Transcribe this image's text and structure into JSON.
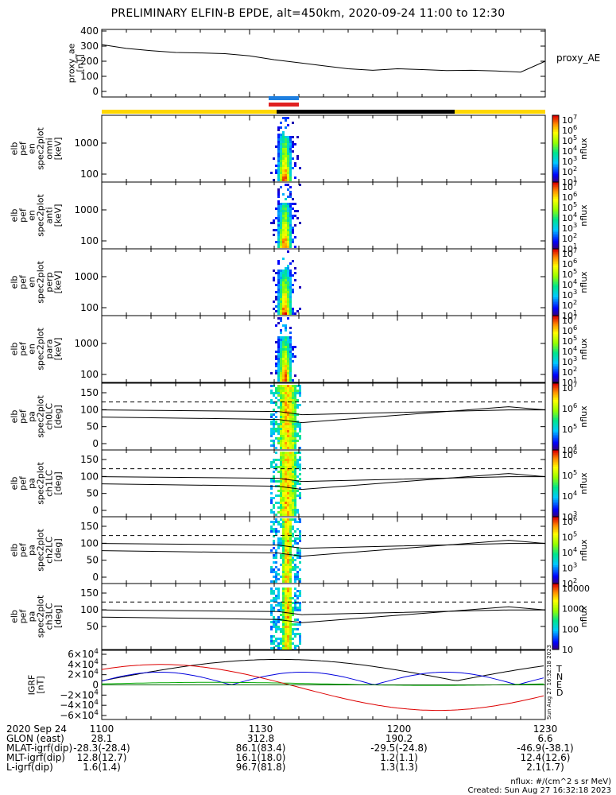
{
  "title": "PRELIMINARY ELFIN-B EPDE, alt=450km, 2020-09-24 11:00 to 12:30",
  "colors": {
    "state_bar_yellow": "#ffd700",
    "state_bar_black": "#000000",
    "science_bar_blue": "#1e7fe0",
    "science_bar_red": "#e02020"
  },
  "chart_data": [
    {
      "type": "line",
      "name": "proxy_ae",
      "ylabel": [
        "proxy_ae",
        "[nT]"
      ],
      "legend": "proxy_AE",
      "yticks": [
        "400",
        "300",
        "200",
        "100",
        "0"
      ],
      "ylim": [
        0,
        400
      ],
      "x": [
        "11:00",
        "11:05",
        "11:10",
        "11:15",
        "11:20",
        "11:25",
        "11:30",
        "11:35",
        "11:40",
        "11:45",
        "11:50",
        "11:55",
        "12:00",
        "12:05",
        "12:10",
        "12:15",
        "12:20",
        "12:25",
        "12:30"
      ],
      "y": [
        310,
        285,
        270,
        258,
        255,
        250,
        235,
        210,
        190,
        170,
        150,
        140,
        150,
        145,
        138,
        140,
        135,
        128,
        200
      ]
    },
    {
      "type": "heatmap",
      "panels": [
        {
          "ylabel": [
            "elb",
            "pef",
            "en",
            "spec2plot",
            "omni",
            "[keV]"
          ],
          "yticks": [
            "1000",
            "100"
          ],
          "scale": "log",
          "cbar_ticks": [
            "10^7",
            "10^6",
            "10^5",
            "10^4",
            "10^3",
            "10^2",
            "10^1"
          ],
          "cbar_label": "nflux"
        },
        {
          "ylabel": [
            "elb",
            "pef",
            "en",
            "spec2plot",
            "anti",
            "[keV]"
          ],
          "yticks": [
            "1000",
            "100"
          ],
          "scale": "log",
          "cbar_ticks": [
            "10^7",
            "10^6",
            "10^5",
            "10^4",
            "10^3",
            "10^2",
            "10^1"
          ],
          "cbar_label": "nflux"
        },
        {
          "ylabel": [
            "elb",
            "pef",
            "en",
            "spec2plot",
            "perp",
            "[keV]"
          ],
          "yticks": [
            "1000",
            "100"
          ],
          "scale": "log",
          "cbar_ticks": [
            "10^7",
            "10^6",
            "10^5",
            "10^4",
            "10^3",
            "10^2",
            "10^1"
          ],
          "cbar_label": "nflux"
        },
        {
          "ylabel": [
            "elb",
            "pef",
            "en",
            "spec2plot",
            "para",
            "[keV]"
          ],
          "yticks": [
            "1000",
            "100"
          ],
          "scale": "log",
          "cbar_ticks": [
            "10^7",
            "10^6",
            "10^5",
            "10^4",
            "10^3",
            "10^2",
            "10^1"
          ],
          "cbar_label": "nflux"
        },
        {
          "ylabel": [
            "elb",
            "pef",
            "pa",
            "spec2plot",
            "ch0LC",
            "[deg]"
          ],
          "yticks": [
            "150",
            "100",
            "50",
            "0"
          ],
          "scale": "linear",
          "cbar_ticks": [
            "10^7",
            "10^6",
            "10^5",
            "10^4"
          ],
          "cbar_label": "nflux"
        },
        {
          "ylabel": [
            "elb",
            "pef",
            "pa",
            "spec2plot",
            "ch1LC",
            "[deg]"
          ],
          "yticks": [
            "150",
            "100",
            "50",
            "0"
          ],
          "scale": "linear",
          "cbar_ticks": [
            "10^6",
            "10^5",
            "10^4",
            "10^3"
          ],
          "cbar_label": "nflux"
        },
        {
          "ylabel": [
            "elb",
            "pef",
            "pa",
            "spec2plot",
            "ch2LC",
            "[deg]"
          ],
          "yticks": [
            "150",
            "100",
            "50",
            "0"
          ],
          "scale": "linear",
          "cbar_ticks": [
            "10^6",
            "10^5",
            "10^4",
            "10^3",
            "10^2"
          ],
          "cbar_label": "nflux"
        },
        {
          "ylabel": [
            "elb",
            "pef",
            "pa",
            "spec2plot",
            "ch3LC",
            "[deg]"
          ],
          "yticks": [
            "150",
            "100",
            "50"
          ],
          "scale": "linear",
          "cbar_ticks": [
            "10000",
            "1000",
            "100",
            "10"
          ],
          "cbar_label": "nflux"
        }
      ]
    },
    {
      "type": "line",
      "name": "IGRF",
      "ylabel": [
        "IGRF",
        "[nT]"
      ],
      "yticks": [
        "6×10^4",
        "4×10^4",
        "2×10^4",
        "0",
        "−2×10^4",
        "−4×10^4",
        "−6×10^4"
      ],
      "ylim": [
        -60000,
        60000
      ],
      "legend": [
        "T",
        "N",
        "E",
        "D"
      ],
      "legend_colors": [
        "#000000",
        "#0000dd",
        "#00aa00",
        "#dd0000"
      ]
    }
  ],
  "footer": {
    "xaxis_rows": [
      {
        "label": "2020 Sep 24",
        "values": [
          "1100",
          "1130",
          "1200",
          "1230"
        ]
      },
      {
        "label": "GLON (east)",
        "values": [
          "28.1",
          "312.8",
          "190.2",
          "6.6"
        ]
      },
      {
        "label": "MLAT-igrf(dip)",
        "values": [
          "-28.3(-28.4)",
          "86.1(83.4)",
          "-29.5(-24.8)",
          "-46.9(-38.1)"
        ]
      },
      {
        "label": "MLT-igrf(dip)",
        "values": [
          "12.8(12.7)",
          "16.1(18.0)",
          "1.2(1.1)",
          "12.4(12.6)"
        ]
      },
      {
        "label": "L-igrf(dip)",
        "values": [
          "1.6(1.4)",
          "96.7(81.8)",
          "1.3(1.3)",
          "2.1(1.7)"
        ]
      }
    ],
    "units_note": "nflux: #/(cm^2 s sr MeV)",
    "created": "Created: Sun Aug 27 16:32:18 2023",
    "side_stamp": "Sun Aug 27 16:32:18 2023"
  }
}
